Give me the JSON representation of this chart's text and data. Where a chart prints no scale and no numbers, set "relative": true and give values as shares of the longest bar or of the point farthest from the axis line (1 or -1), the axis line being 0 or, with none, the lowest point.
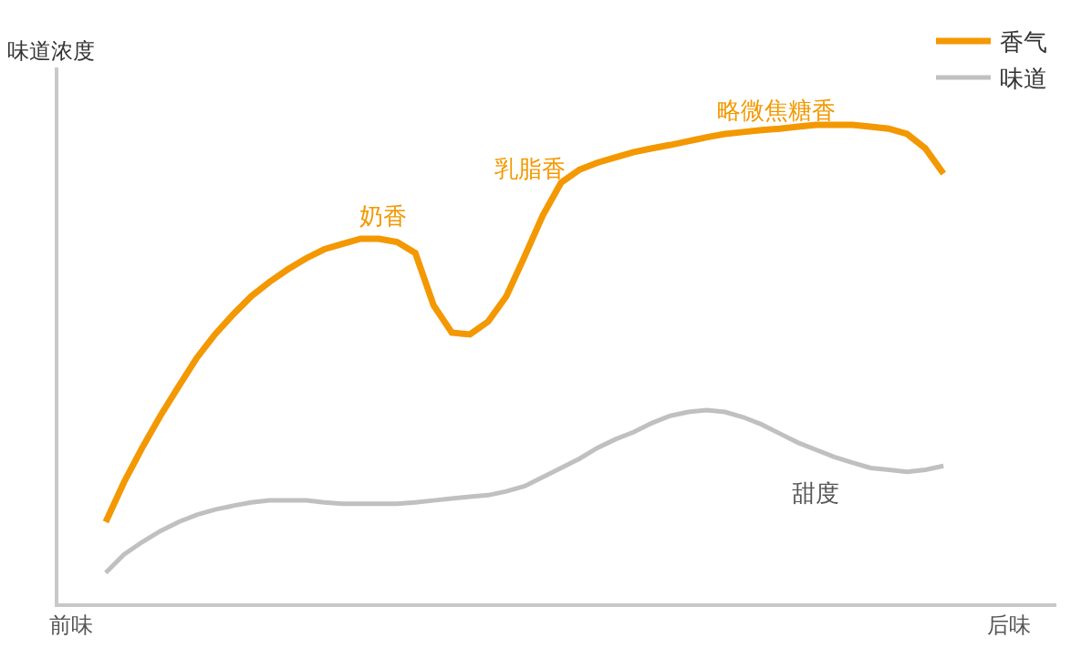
{
  "chart_data": {
    "type": "line",
    "relative": true,
    "ylabel": "味道浓度",
    "legend": "top right",
    "marker": "none",
    "line_style": "solid",
    "categories": [
      null,
      null,
      null,
      null,
      null,
      null,
      null,
      null,
      null,
      null,
      null,
      null,
      null,
      null,
      null,
      null,
      null,
      null,
      null,
      null,
      null,
      null,
      null,
      null,
      null,
      null,
      null,
      null,
      null,
      null,
      null,
      null,
      null,
      null,
      null,
      null,
      null,
      null,
      null,
      null,
      null,
      null,
      null,
      null,
      null,
      null,
      null
    ],
    "series": [
      {
        "name": "香气",
        "color": "#f39800",
        "values": [
          0.17,
          0.253,
          0.325,
          0.392,
          0.453,
          0.513,
          0.562,
          0.604,
          0.642,
          0.672,
          0.698,
          0.721,
          0.74,
          0.751,
          0.762,
          0.762,
          0.755,
          0.732,
          0.623,
          0.566,
          0.562,
          0.589,
          0.642,
          0.725,
          0.811,
          0.879,
          0.906,
          0.921,
          0.932,
          0.943,
          0.951,
          0.958,
          0.966,
          0.974,
          0.981,
          0.985,
          0.989,
          0.992,
          0.996,
          1,
          1,
          1,
          0.996,
          0.992,
          0.981,
          0.951,
          0.898
        ]
      },
      {
        "name": "味道",
        "color": "#c0c0c0",
        "values": [
          0.064,
          0.102,
          0.128,
          0.151,
          0.17,
          0.185,
          0.196,
          0.204,
          0.211,
          0.215,
          0.215,
          0.215,
          0.211,
          0.208,
          0.208,
          0.208,
          0.208,
          0.211,
          0.215,
          0.219,
          0.223,
          0.226,
          0.234,
          0.245,
          0.264,
          0.283,
          0.302,
          0.325,
          0.343,
          0.358,
          0.377,
          0.392,
          0.4,
          0.404,
          0.4,
          0.389,
          0.374,
          0.355,
          0.336,
          0.321,
          0.306,
          0.294,
          0.283,
          0.279,
          0.275,
          0.279,
          0.287
        ]
      }
    ],
    "annotations": [
      "奶香",
      "乳脂香",
      "略微焦糖香",
      "甜度",
      "前味",
      "后味"
    ]
  }
}
